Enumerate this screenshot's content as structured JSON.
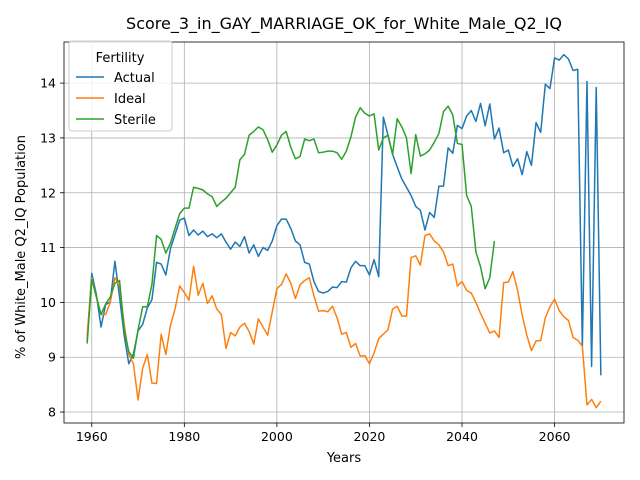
{
  "chart_data": {
    "type": "line",
    "title": "Score_3_in_GAY_MARRIAGE_OK_for_White_Male_Q2_IQ",
    "xlabel": "Years",
    "ylabel": "% of White_Male Q2_IQ Population",
    "xlim": [
      1954,
      2075
    ],
    "ylim": [
      7.8,
      14.75
    ],
    "xticks": [
      1960,
      1980,
      2000,
      2020,
      2040,
      2060
    ],
    "yticks": [
      8,
      9,
      10,
      11,
      12,
      13,
      14
    ],
    "grid": true,
    "legend": {
      "title": "Fertility",
      "placement": "top-left"
    },
    "series": [
      {
        "name": "Actual",
        "color": "#1f77b4",
        "x": [
          1959,
          1960,
          1961,
          1962,
          1963,
          1964,
          1965,
          1966,
          1967,
          1968,
          1969,
          1970,
          1971,
          1972,
          1973,
          1974,
          1975,
          1976,
          1977,
          1978,
          1979,
          1980,
          1981,
          1982,
          1983,
          1984,
          1985,
          1986,
          1987,
          1988,
          1989,
          1990,
          1991,
          1992,
          1993,
          1994,
          1995,
          1996,
          1997,
          1998,
          1999,
          2000,
          2001,
          2002,
          2003,
          2004,
          2005,
          2006,
          2007,
          2008,
          2009,
          2010,
          2011,
          2012,
          2013,
          2014,
          2015,
          2016,
          2017,
          2018,
          2019,
          2020,
          2021,
          2022,
          2023,
          2024,
          2025,
          2026,
          2027,
          2028,
          2029,
          2030,
          2031,
          2032,
          2033,
          2034,
          2035,
          2036,
          2037,
          2038,
          2039,
          2040,
          2041,
          2042,
          2043,
          2044,
          2045,
          2046,
          2047,
          2048,
          2049,
          2050,
          2051,
          2052,
          2053,
          2054,
          2055,
          2056,
          2057,
          2058,
          2059,
          2060,
          2061,
          2062,
          2063,
          2064,
          2065,
          2066,
          2067,
          2068,
          2069,
          2070
        ],
        "y": [
          9.3,
          10.53,
          10.14,
          9.55,
          9.96,
          10.01,
          10.75,
          10.1,
          9.4,
          8.88,
          9.06,
          9.48,
          9.6,
          9.9,
          10.05,
          10.73,
          10.7,
          10.5,
          10.98,
          11.24,
          11.5,
          11.54,
          11.22,
          11.32,
          11.23,
          11.3,
          11.2,
          11.25,
          11.18,
          11.25,
          11.1,
          10.97,
          11.1,
          11.02,
          11.2,
          10.9,
          11.05,
          10.84,
          11.0,
          10.95,
          11.12,
          11.4,
          11.52,
          11.52,
          11.35,
          11.12,
          11.05,
          10.73,
          10.7,
          10.38,
          10.2,
          10.17,
          10.2,
          10.28,
          10.27,
          10.38,
          10.37,
          10.63,
          10.75,
          10.67,
          10.67,
          10.5,
          10.78,
          10.47,
          13.38,
          13.05,
          12.7,
          12.47,
          12.25,
          12.1,
          11.95,
          11.75,
          11.68,
          11.32,
          11.64,
          11.55,
          12.12,
          12.12,
          12.82,
          12.72,
          13.23,
          13.17,
          13.4,
          13.5,
          13.3,
          13.63,
          13.22,
          13.62,
          12.98,
          13.18,
          12.73,
          12.78,
          12.48,
          12.62,
          12.33,
          12.75,
          12.5,
          13.28,
          13.1,
          13.98,
          13.9,
          14.46,
          14.42,
          14.52,
          14.44,
          14.23,
          14.25,
          9.2,
          14.03,
          8.83,
          13.92,
          8.67
        ]
      },
      {
        "name": "Ideal",
        "color": "#ff7f0e",
        "x": [
          1959,
          1960,
          1961,
          1962,
          1963,
          1964,
          1965,
          1966,
          1967,
          1968,
          1969,
          1970,
          1971,
          1972,
          1973,
          1974,
          1975,
          1976,
          1977,
          1978,
          1979,
          1980,
          1981,
          1982,
          1983,
          1984,
          1985,
          1986,
          1987,
          1988,
          1989,
          1990,
          1991,
          1992,
          1993,
          1994,
          1995,
          1996,
          1997,
          1998,
          1999,
          2000,
          2001,
          2002,
          2003,
          2004,
          2005,
          2006,
          2007,
          2008,
          2009,
          2010,
          2011,
          2012,
          2013,
          2014,
          2015,
          2016,
          2017,
          2018,
          2019,
          2020,
          2021,
          2022,
          2023,
          2024,
          2025,
          2026,
          2027,
          2028,
          2029,
          2030,
          2031,
          2032,
          2033,
          2034,
          2035,
          2036,
          2037,
          2038,
          2039,
          2040,
          2041,
          2042,
          2043,
          2044,
          2045,
          2046,
          2047,
          2048,
          2049,
          2050,
          2051,
          2052,
          2053,
          2054,
          2055,
          2056,
          2057,
          2058,
          2059,
          2060,
          2061,
          2062,
          2063,
          2064,
          2065,
          2066,
          2067,
          2068,
          2069,
          2070
        ],
        "y": [
          9.4,
          10.45,
          10.1,
          9.78,
          9.78,
          10.0,
          10.45,
          10.3,
          9.6,
          9.05,
          8.88,
          8.22,
          8.8,
          9.05,
          8.53,
          8.52,
          9.42,
          9.05,
          9.58,
          9.88,
          10.3,
          10.18,
          10.04,
          10.66,
          10.13,
          10.35,
          9.98,
          10.12,
          9.88,
          9.78,
          9.16,
          9.45,
          9.39,
          9.55,
          9.62,
          9.47,
          9.24,
          9.7,
          9.55,
          9.4,
          9.83,
          10.25,
          10.33,
          10.52,
          10.35,
          10.07,
          10.32,
          10.4,
          10.45,
          10.12,
          9.84,
          9.85,
          9.83,
          9.93,
          9.72,
          9.42,
          9.45,
          9.18,
          9.25,
          9.02,
          9.03,
          8.88,
          9.08,
          9.34,
          9.42,
          9.5,
          9.88,
          9.93,
          9.75,
          9.75,
          10.82,
          10.85,
          10.68,
          11.22,
          11.25,
          11.12,
          11.05,
          10.92,
          10.67,
          10.7,
          10.3,
          10.38,
          10.22,
          10.17,
          10.0,
          9.8,
          9.62,
          9.44,
          9.48,
          9.36,
          10.36,
          10.37,
          10.56,
          10.22,
          9.77,
          9.4,
          9.12,
          9.3,
          9.3,
          9.72,
          9.92,
          10.06,
          9.85,
          9.74,
          9.67,
          9.36,
          9.31,
          9.2,
          8.13,
          8.23,
          8.08,
          8.2
        ]
      },
      {
        "name": "Sterile",
        "color": "#2ca02c",
        "x": [
          1959,
          1960,
          1961,
          1962,
          1963,
          1964,
          1965,
          1966,
          1967,
          1968,
          1969,
          1970,
          1971,
          1972,
          1973,
          1974,
          1975,
          1976,
          1977,
          1978,
          1979,
          1980,
          1981,
          1982,
          1983,
          1984,
          1985,
          1986,
          1987,
          1988,
          1989,
          1990,
          1991,
          1992,
          1993,
          1994,
          1995,
          1996,
          1997,
          1998,
          1999,
          2000,
          2001,
          2002,
          2003,
          2004,
          2005,
          2006,
          2007,
          2008,
          2009,
          2010,
          2011,
          2012,
          2013,
          2014,
          2015,
          2016,
          2017,
          2018,
          2019,
          2020,
          2021,
          2022,
          2023,
          2024,
          2025,
          2026,
          2027,
          2028,
          2029,
          2030,
          2031,
          2032,
          2033,
          2034,
          2035,
          2036,
          2037,
          2038,
          2039,
          2040,
          2041,
          2042,
          2043,
          2044,
          2045,
          2046,
          2047
        ],
        "y": [
          9.25,
          10.42,
          10.1,
          9.78,
          9.97,
          10.1,
          10.35,
          10.4,
          9.5,
          9.1,
          8.98,
          9.5,
          9.92,
          9.92,
          10.33,
          11.22,
          11.15,
          10.9,
          11.08,
          11.35,
          11.62,
          11.72,
          11.72,
          12.1,
          12.08,
          12.05,
          11.98,
          11.93,
          11.75,
          11.83,
          11.9,
          12.0,
          12.1,
          12.6,
          12.7,
          13.05,
          13.12,
          13.2,
          13.15,
          12.97,
          12.74,
          12.87,
          13.05,
          13.12,
          12.83,
          12.62,
          12.66,
          12.98,
          12.95,
          12.98,
          12.73,
          12.74,
          12.76,
          12.76,
          12.73,
          12.61,
          12.76,
          13.02,
          13.38,
          13.55,
          13.45,
          13.4,
          13.44,
          12.78,
          13.0,
          13.05,
          12.7,
          13.35,
          13.2,
          13.0,
          12.35,
          13.06,
          12.67,
          12.71,
          12.78,
          12.92,
          13.08,
          13.48,
          13.58,
          13.42,
          12.9,
          12.88,
          11.95,
          11.75,
          10.92,
          10.65,
          10.25,
          10.45,
          11.12
        ]
      }
    ]
  }
}
